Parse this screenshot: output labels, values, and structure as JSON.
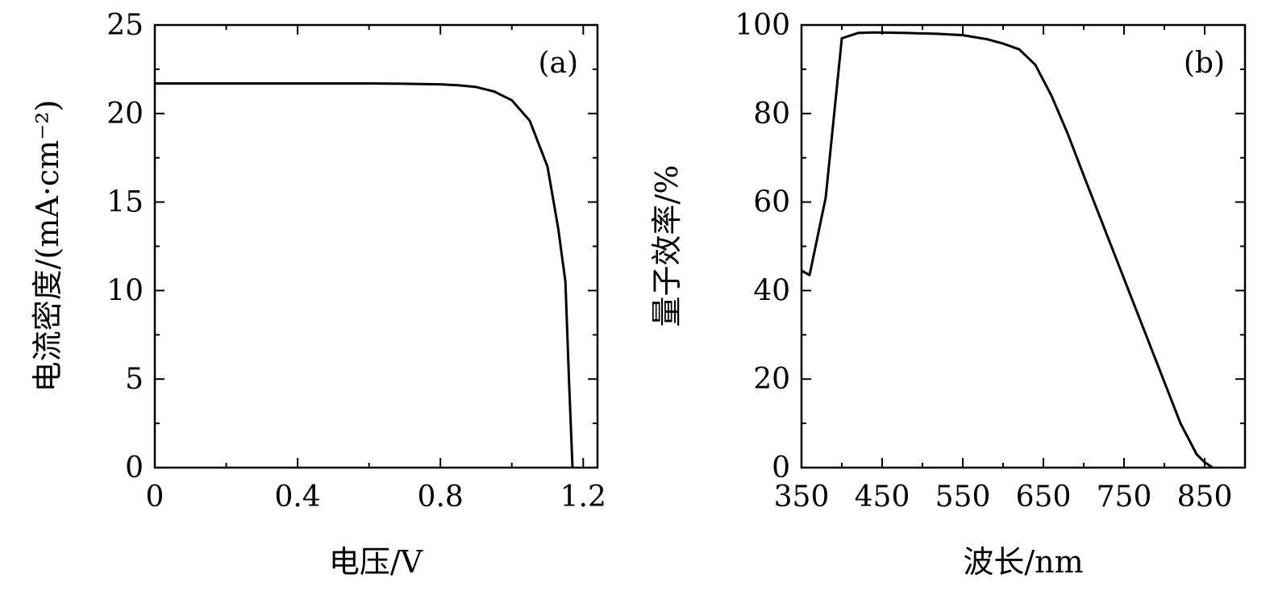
{
  "chart_data": [
    {
      "type": "line",
      "panel_label": "(a)",
      "xlabel": "电压/V",
      "ylabel": "电流密度/(mA·cm⁻²)",
      "xlim": [
        0,
        1.24
      ],
      "ylim": [
        0,
        25
      ],
      "xticks": [
        0,
        0.4,
        0.8,
        1.2
      ],
      "xtick_labels": [
        "0",
        "0.4",
        "0.8",
        "1.2"
      ],
      "yticks": [
        0,
        5,
        10,
        15,
        20,
        25
      ],
      "ytick_labels": [
        "0",
        "5",
        "10",
        "15",
        "20",
        "25"
      ],
      "x_minor_step": 0.2,
      "y_minor_step": 2.5,
      "grid": false,
      "series": [
        {
          "x": [
            0,
            0.2,
            0.4,
            0.6,
            0.7,
            0.8,
            0.85,
            0.9,
            0.95,
            1.0,
            1.05,
            1.1,
            1.13,
            1.15,
            1.16,
            1.17
          ],
          "y": [
            21.7,
            21.7,
            21.7,
            21.7,
            21.68,
            21.65,
            21.6,
            21.5,
            21.25,
            20.75,
            19.6,
            17.0,
            13.5,
            10.5,
            5.0,
            0
          ]
        }
      ]
    },
    {
      "type": "line",
      "panel_label": "(b)",
      "xlabel": "波长/nm",
      "ylabel": "量子效率/%",
      "xlim": [
        350,
        900
      ],
      "ylim": [
        0,
        100
      ],
      "xticks": [
        350,
        450,
        550,
        650,
        750,
        850
      ],
      "xtick_labels": [
        "350",
        "450",
        "550",
        "650",
        "750",
        "850"
      ],
      "yticks": [
        0,
        20,
        40,
        60,
        80,
        100
      ],
      "ytick_labels": [
        "0",
        "20",
        "40",
        "60",
        "80",
        "100"
      ],
      "x_minor_step": 50,
      "y_minor_step": 10,
      "grid": false,
      "series": [
        {
          "x": [
            350,
            360,
            380,
            400,
            420,
            440,
            480,
            520,
            550,
            580,
            600,
            620,
            640,
            660,
            680,
            700,
            730,
            760,
            790,
            820,
            840,
            850,
            860
          ],
          "y": [
            44.5,
            43.5,
            61,
            97,
            98.2,
            98.3,
            98.2,
            98,
            97.7,
            96.8,
            95.8,
            94.5,
            91,
            84,
            75.5,
            66,
            52,
            38,
            24,
            10,
            3,
            1.2,
            0
          ]
        }
      ]
    }
  ]
}
